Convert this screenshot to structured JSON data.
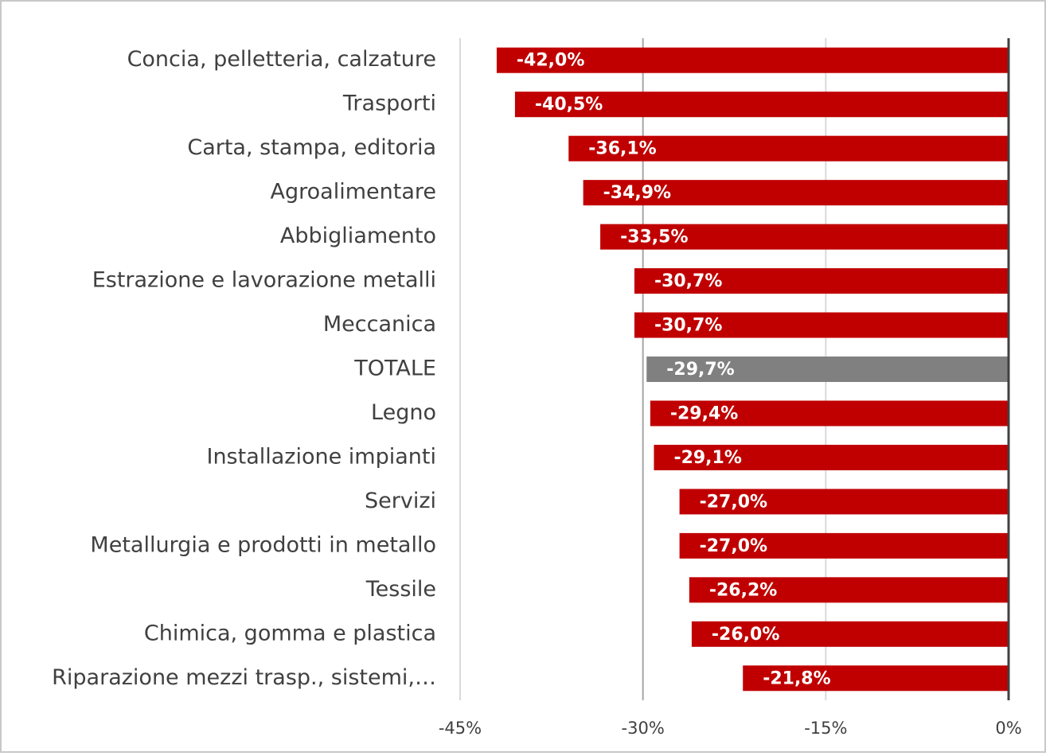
{
  "chart_data": {
    "type": "barh",
    "categories": [
      "Concia, pelletteria, calzature",
      "Trasporti",
      "Carta, stampa, editoria",
      "Agroalimentare",
      "Abbigliamento",
      "Estrazione e lavorazione metalli",
      "Meccanica",
      "TOTALE",
      "Legno",
      "Installazione impianti",
      "Servizi",
      "Metallurgia e prodotti in metallo",
      "Tessile",
      "Chimica, gomma e plastica",
      "Riparazione mezzi trasp., sistemi,…"
    ],
    "values": [
      -42.0,
      -40.5,
      -36.1,
      -34.9,
      -33.5,
      -30.7,
      -30.7,
      -29.7,
      -29.4,
      -29.1,
      -27.0,
      -27.0,
      -26.2,
      -26.0,
      -21.8
    ],
    "value_labels": [
      "-42,0%",
      "-40,5%",
      "-36,1%",
      "-34,9%",
      "-33,5%",
      "-30,7%",
      "-30,7%",
      "-29,7%",
      "-29,4%",
      "-29,1%",
      "-27,0%",
      "-27,0%",
      "-26,2%",
      "-26,0%",
      "-21,8%"
    ],
    "colors": [
      "#c00000",
      "#c00000",
      "#c00000",
      "#c00000",
      "#c00000",
      "#c00000",
      "#c00000",
      "#808080",
      "#c00000",
      "#c00000",
      "#c00000",
      "#c00000",
      "#c00000",
      "#c00000",
      "#c00000"
    ],
    "xlim": [
      -45,
      0
    ],
    "xticks": [
      {
        "value": -45,
        "label": "-45%"
      },
      {
        "value": -30,
        "label": "-30%"
      },
      {
        "value": -15,
        "label": "-15%"
      },
      {
        "value": 0,
        "label": "0%"
      }
    ],
    "grid": true
  }
}
